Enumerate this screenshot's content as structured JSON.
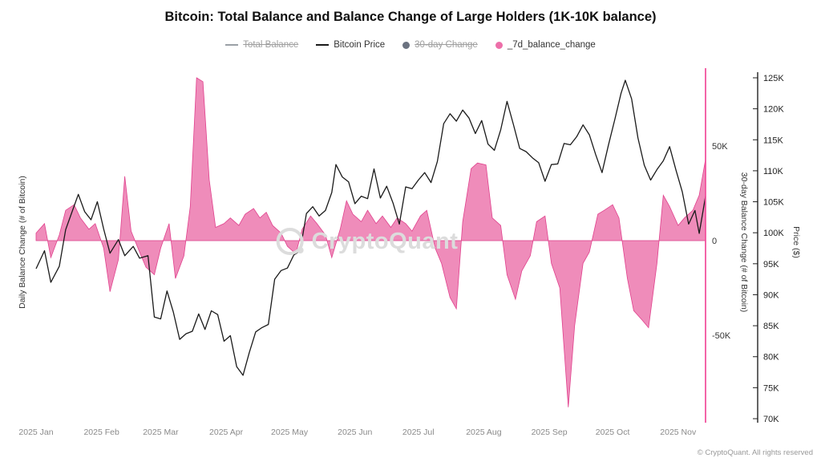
{
  "title": "Bitcoin: Total Balance and Balance Change of Large Holders (1K-10K balance)",
  "legend": [
    {
      "label": "Total Balance",
      "type": "line",
      "color": "#9aa0a6",
      "disabled": true
    },
    {
      "label": "Bitcoin Price",
      "type": "line",
      "color": "#1a1a1a",
      "disabled": false
    },
    {
      "label": "30-day Change",
      "type": "dot",
      "color": "#6b7280",
      "disabled": true
    },
    {
      "label": "_7d_balance_change",
      "type": "dot",
      "color": "#ed6fa9",
      "disabled": false
    }
  ],
  "axes": {
    "left_label": "Daily Balance Change (# of Bitcoin)",
    "right_inner_label": "30-day Balance Change (# of Bitcoin)",
    "right_outer_label": "Price ($)",
    "balance_ticks": [
      {
        "label": "50K",
        "value": 50
      },
      {
        "label": "0",
        "value": 0
      },
      {
        "label": "-50K",
        "value": -50
      }
    ],
    "price_ticks": [
      {
        "label": "125K",
        "value": 125
      },
      {
        "label": "120K",
        "value": 120
      },
      {
        "label": "115K",
        "value": 115
      },
      {
        "label": "110K",
        "value": 110
      },
      {
        "label": "105K",
        "value": 105
      },
      {
        "label": "100K",
        "value": 100
      },
      {
        "label": "95K",
        "value": 95
      },
      {
        "label": "90K",
        "value": 90
      },
      {
        "label": "85K",
        "value": 85
      },
      {
        "label": "80K",
        "value": 80
      },
      {
        "label": "75K",
        "value": 75
      },
      {
        "label": "70K",
        "value": 70
      }
    ],
    "x_ticks": [
      {
        "label": "2025 Jan",
        "doy": 1
      },
      {
        "label": "2025 Feb",
        "doy": 32
      },
      {
        "label": "2025 Mar",
        "doy": 60
      },
      {
        "label": "2025 Apr",
        "doy": 91
      },
      {
        "label": "2025 May",
        "doy": 121
      },
      {
        "label": "2025 Jun",
        "doy": 152
      },
      {
        "label": "2025 Jul",
        "doy": 182
      },
      {
        "label": "2025 Aug",
        "doy": 213
      },
      {
        "label": "2025 Sep",
        "doy": 244
      },
      {
        "label": "2025 Oct",
        "doy": 274
      },
      {
        "label": "2025 Nov",
        "doy": 305
      }
    ],
    "colors": {
      "pink_axis": "#f2549f",
      "price_axis": "#222222",
      "zero_line": "#d9d9d9"
    }
  },
  "watermark": "CryptoQuant",
  "footer": "© CryptoQuant. All rights reserved",
  "chart_data": {
    "type": "line",
    "x_unit": "day_of_year_2025",
    "price_axis_range_k_usd": [
      70,
      125
    ],
    "balance_axis_ticks_k_btc": [
      50,
      0,
      -50
    ],
    "legend_position": "top",
    "grid": false,
    "series": [
      {
        "name": "Bitcoin Price",
        "type": "line",
        "axis": "price_usd_thousands",
        "color": "#1a1a1a",
        "points": [
          [
            1,
            94.2
          ],
          [
            5,
            97.1
          ],
          [
            8,
            92.0
          ],
          [
            12,
            94.6
          ],
          [
            15,
            100.5
          ],
          [
            19,
            104.3
          ],
          [
            21,
            106.2
          ],
          [
            24,
            103.4
          ],
          [
            27,
            102.1
          ],
          [
            30,
            105.0
          ],
          [
            33,
            100.6
          ],
          [
            36,
            96.7
          ],
          [
            40,
            98.9
          ],
          [
            43,
            96.3
          ],
          [
            47,
            97.8
          ],
          [
            50,
            95.9
          ],
          [
            54,
            96.3
          ],
          [
            57,
            86.4
          ],
          [
            60,
            86.1
          ],
          [
            63,
            90.6
          ],
          [
            66,
            87.2
          ],
          [
            69,
            82.8
          ],
          [
            72,
            83.7
          ],
          [
            75,
            84.1
          ],
          [
            78,
            86.9
          ],
          [
            81,
            84.4
          ],
          [
            84,
            87.4
          ],
          [
            87,
            86.8
          ],
          [
            90,
            82.5
          ],
          [
            93,
            83.4
          ],
          [
            96,
            78.4
          ],
          [
            99,
            77.0
          ],
          [
            102,
            80.7
          ],
          [
            105,
            84.0
          ],
          [
            108,
            84.7
          ],
          [
            111,
            85.2
          ],
          [
            114,
            92.5
          ],
          [
            117,
            93.9
          ],
          [
            120,
            94.3
          ],
          [
            123,
            96.4
          ],
          [
            126,
            97.1
          ],
          [
            129,
            103.1
          ],
          [
            132,
            104.2
          ],
          [
            135,
            102.7
          ],
          [
            138,
            103.6
          ],
          [
            141,
            106.5
          ],
          [
            143,
            111.0
          ],
          [
            146,
            109.0
          ],
          [
            149,
            108.2
          ],
          [
            152,
            104.7
          ],
          [
            155,
            105.9
          ],
          [
            158,
            105.5
          ],
          [
            161,
            110.3
          ],
          [
            164,
            105.6
          ],
          [
            167,
            107.5
          ],
          [
            170,
            104.8
          ],
          [
            173,
            101.4
          ],
          [
            176,
            107.4
          ],
          [
            179,
            107.1
          ],
          [
            182,
            108.5
          ],
          [
            185,
            109.7
          ],
          [
            188,
            108.1
          ],
          [
            191,
            111.5
          ],
          [
            194,
            117.6
          ],
          [
            197,
            119.2
          ],
          [
            200,
            118.0
          ],
          [
            203,
            119.8
          ],
          [
            206,
            118.5
          ],
          [
            209,
            116.0
          ],
          [
            212,
            118.1
          ],
          [
            215,
            114.3
          ],
          [
            218,
            113.3
          ],
          [
            221,
            116.6
          ],
          [
            224,
            121.2
          ],
          [
            227,
            117.5
          ],
          [
            230,
            113.6
          ],
          [
            233,
            113.1
          ],
          [
            236,
            112.1
          ],
          [
            239,
            111.3
          ],
          [
            242,
            108.3
          ],
          [
            245,
            111.0
          ],
          [
            248,
            111.1
          ],
          [
            251,
            114.4
          ],
          [
            254,
            114.2
          ],
          [
            257,
            115.5
          ],
          [
            260,
            117.4
          ],
          [
            263,
            115.8
          ],
          [
            266,
            112.6
          ],
          [
            269,
            109.7
          ],
          [
            272,
            114.1
          ],
          [
            275,
            118.2
          ],
          [
            278,
            122.5
          ],
          [
            280,
            124.6
          ],
          [
            283,
            121.6
          ],
          [
            286,
            115.3
          ],
          [
            289,
            110.9
          ],
          [
            292,
            108.5
          ],
          [
            295,
            110.2
          ],
          [
            298,
            111.6
          ],
          [
            301,
            113.9
          ],
          [
            304,
            110.1
          ],
          [
            307,
            106.6
          ],
          [
            310,
            101.4
          ],
          [
            313,
            103.6
          ],
          [
            315,
            99.9
          ],
          [
            318,
            105.9
          ]
        ]
      },
      {
        "name": "_7d_balance_change",
        "type": "area",
        "axis": "balance_change_thousands_btc",
        "color": "#ee82b4",
        "stroke": "#e0418d",
        "points": [
          [
            1,
            4
          ],
          [
            5,
            9
          ],
          [
            8,
            -9
          ],
          [
            12,
            3
          ],
          [
            15,
            16
          ],
          [
            19,
            19
          ],
          [
            22,
            12
          ],
          [
            26,
            6
          ],
          [
            29,
            9
          ],
          [
            33,
            -4
          ],
          [
            36,
            -27
          ],
          [
            40,
            -10
          ],
          [
            43,
            34
          ],
          [
            46,
            5
          ],
          [
            50,
            -6
          ],
          [
            53,
            -14
          ],
          [
            57,
            -18
          ],
          [
            60,
            -4
          ],
          [
            64,
            9
          ],
          [
            67,
            -20
          ],
          [
            71,
            -8
          ],
          [
            74,
            18
          ],
          [
            77,
            86
          ],
          [
            80,
            84
          ],
          [
            83,
            32
          ],
          [
            86,
            7
          ],
          [
            90,
            9
          ],
          [
            93,
            12
          ],
          [
            97,
            8
          ],
          [
            100,
            14
          ],
          [
            104,
            17
          ],
          [
            107,
            12
          ],
          [
            110,
            15
          ],
          [
            113,
            8
          ],
          [
            117,
            4
          ],
          [
            120,
            -3
          ],
          [
            124,
            -7
          ],
          [
            127,
            6
          ],
          [
            131,
            13
          ],
          [
            134,
            9
          ],
          [
            138,
            3
          ],
          [
            141,
            -9
          ],
          [
            145,
            6
          ],
          [
            148,
            21
          ],
          [
            151,
            14
          ],
          [
            155,
            10
          ],
          [
            158,
            16
          ],
          [
            162,
            9
          ],
          [
            165,
            13
          ],
          [
            169,
            7
          ],
          [
            172,
            12
          ],
          [
            176,
            9
          ],
          [
            179,
            5
          ],
          [
            183,
            13
          ],
          [
            186,
            16
          ],
          [
            190,
            -4
          ],
          [
            193,
            -12
          ],
          [
            197,
            -30
          ],
          [
            200,
            -36
          ],
          [
            203,
            10
          ],
          [
            207,
            38
          ],
          [
            210,
            41
          ],
          [
            214,
            40
          ],
          [
            217,
            12
          ],
          [
            221,
            8
          ],
          [
            224,
            -18
          ],
          [
            228,
            -31
          ],
          [
            231,
            -16
          ],
          [
            235,
            -8
          ],
          [
            238,
            10
          ],
          [
            242,
            13
          ],
          [
            245,
            -12
          ],
          [
            249,
            -25
          ],
          [
            253,
            -88
          ],
          [
            256,
            -45
          ],
          [
            260,
            -12
          ],
          [
            263,
            -6
          ],
          [
            267,
            14
          ],
          [
            270,
            16
          ],
          [
            274,
            19
          ],
          [
            277,
            12
          ],
          [
            281,
            -20
          ],
          [
            284,
            -37
          ],
          [
            288,
            -42
          ],
          [
            291,
            -46
          ],
          [
            295,
            -12
          ],
          [
            298,
            24
          ],
          [
            301,
            18
          ],
          [
            305,
            8
          ],
          [
            308,
            12
          ],
          [
            312,
            16
          ],
          [
            315,
            24
          ],
          [
            318,
            43
          ]
        ]
      }
    ]
  }
}
